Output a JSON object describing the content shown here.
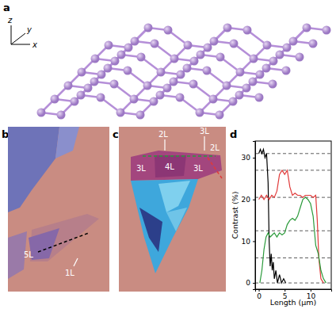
{
  "panels": [
    {
      "label": "a",
      "axes": [
        "x",
        "y",
        "z"
      ]
    },
    {
      "label": "b",
      "annotations": [
        "5L",
        "1L"
      ]
    },
    {
      "label": "c",
      "annotations": [
        "2L",
        "3L",
        "2L",
        "3L",
        "4L",
        "3L"
      ]
    },
    {
      "label": "d"
    }
  ],
  "chart_data": {
    "type": "line",
    "x_label": "Length (μm)",
    "y_label": "Contrast (%)",
    "xlim": [
      -0.7,
      14
    ],
    "ylim": [
      -1.5,
      34
    ],
    "xticks": [
      0,
      5,
      10
    ],
    "yticks": [
      0,
      10,
      20,
      30
    ],
    "grid": false,
    "reference_lines": [
      31,
      27,
      20.5,
      12.5,
      6,
      0
    ],
    "series": [
      {
        "color": "#000000",
        "x": [
          0,
          0.3,
          0.6,
          0.9,
          1.2,
          1.5,
          1.8,
          2.0,
          2.2,
          2.4,
          2.6,
          2.8,
          3.0,
          3.3,
          3.6,
          4.0,
          4.4,
          4.8,
          5.2
        ],
        "values": [
          31,
          32,
          31,
          32,
          30,
          31,
          24,
          10,
          4,
          7,
          3,
          5,
          1,
          3,
          0,
          2,
          0,
          1,
          0
        ]
      },
      {
        "color": "#e03a3a",
        "x": [
          0,
          0.5,
          1,
          1.5,
          2,
          2.5,
          3,
          3.5,
          4,
          4.5,
          5,
          5.5,
          6,
          6.5,
          7,
          7.5,
          8,
          8.5,
          9,
          9.5,
          10,
          10.5,
          11,
          11.3,
          11.6,
          12,
          12.5
        ],
        "values": [
          20,
          21,
          20,
          21,
          20,
          21,
          20.5,
          22,
          26,
          27,
          26,
          27,
          23,
          21,
          21.5,
          21,
          21,
          20.5,
          21,
          21,
          21,
          20.5,
          21,
          15,
          6,
          1,
          0
        ]
      },
      {
        "color": "#2a9a3a",
        "x": [
          0.2,
          0.6,
          1,
          1.4,
          1.8,
          2.2,
          2.6,
          3,
          3.5,
          4,
          4.5,
          5,
          5.5,
          6,
          6.5,
          7,
          7.5,
          8,
          8.5,
          9,
          9.5,
          10,
          10.5,
          11,
          11.5,
          12,
          12.5,
          13
        ],
        "values": [
          0,
          3,
          8,
          11,
          12,
          11,
          11.5,
          12,
          11,
          12,
          11.5,
          12,
          14,
          15,
          15.5,
          15,
          16,
          18,
          20,
          20.5,
          20,
          19,
          16,
          9,
          7,
          3,
          1,
          0
        ]
      }
    ]
  }
}
